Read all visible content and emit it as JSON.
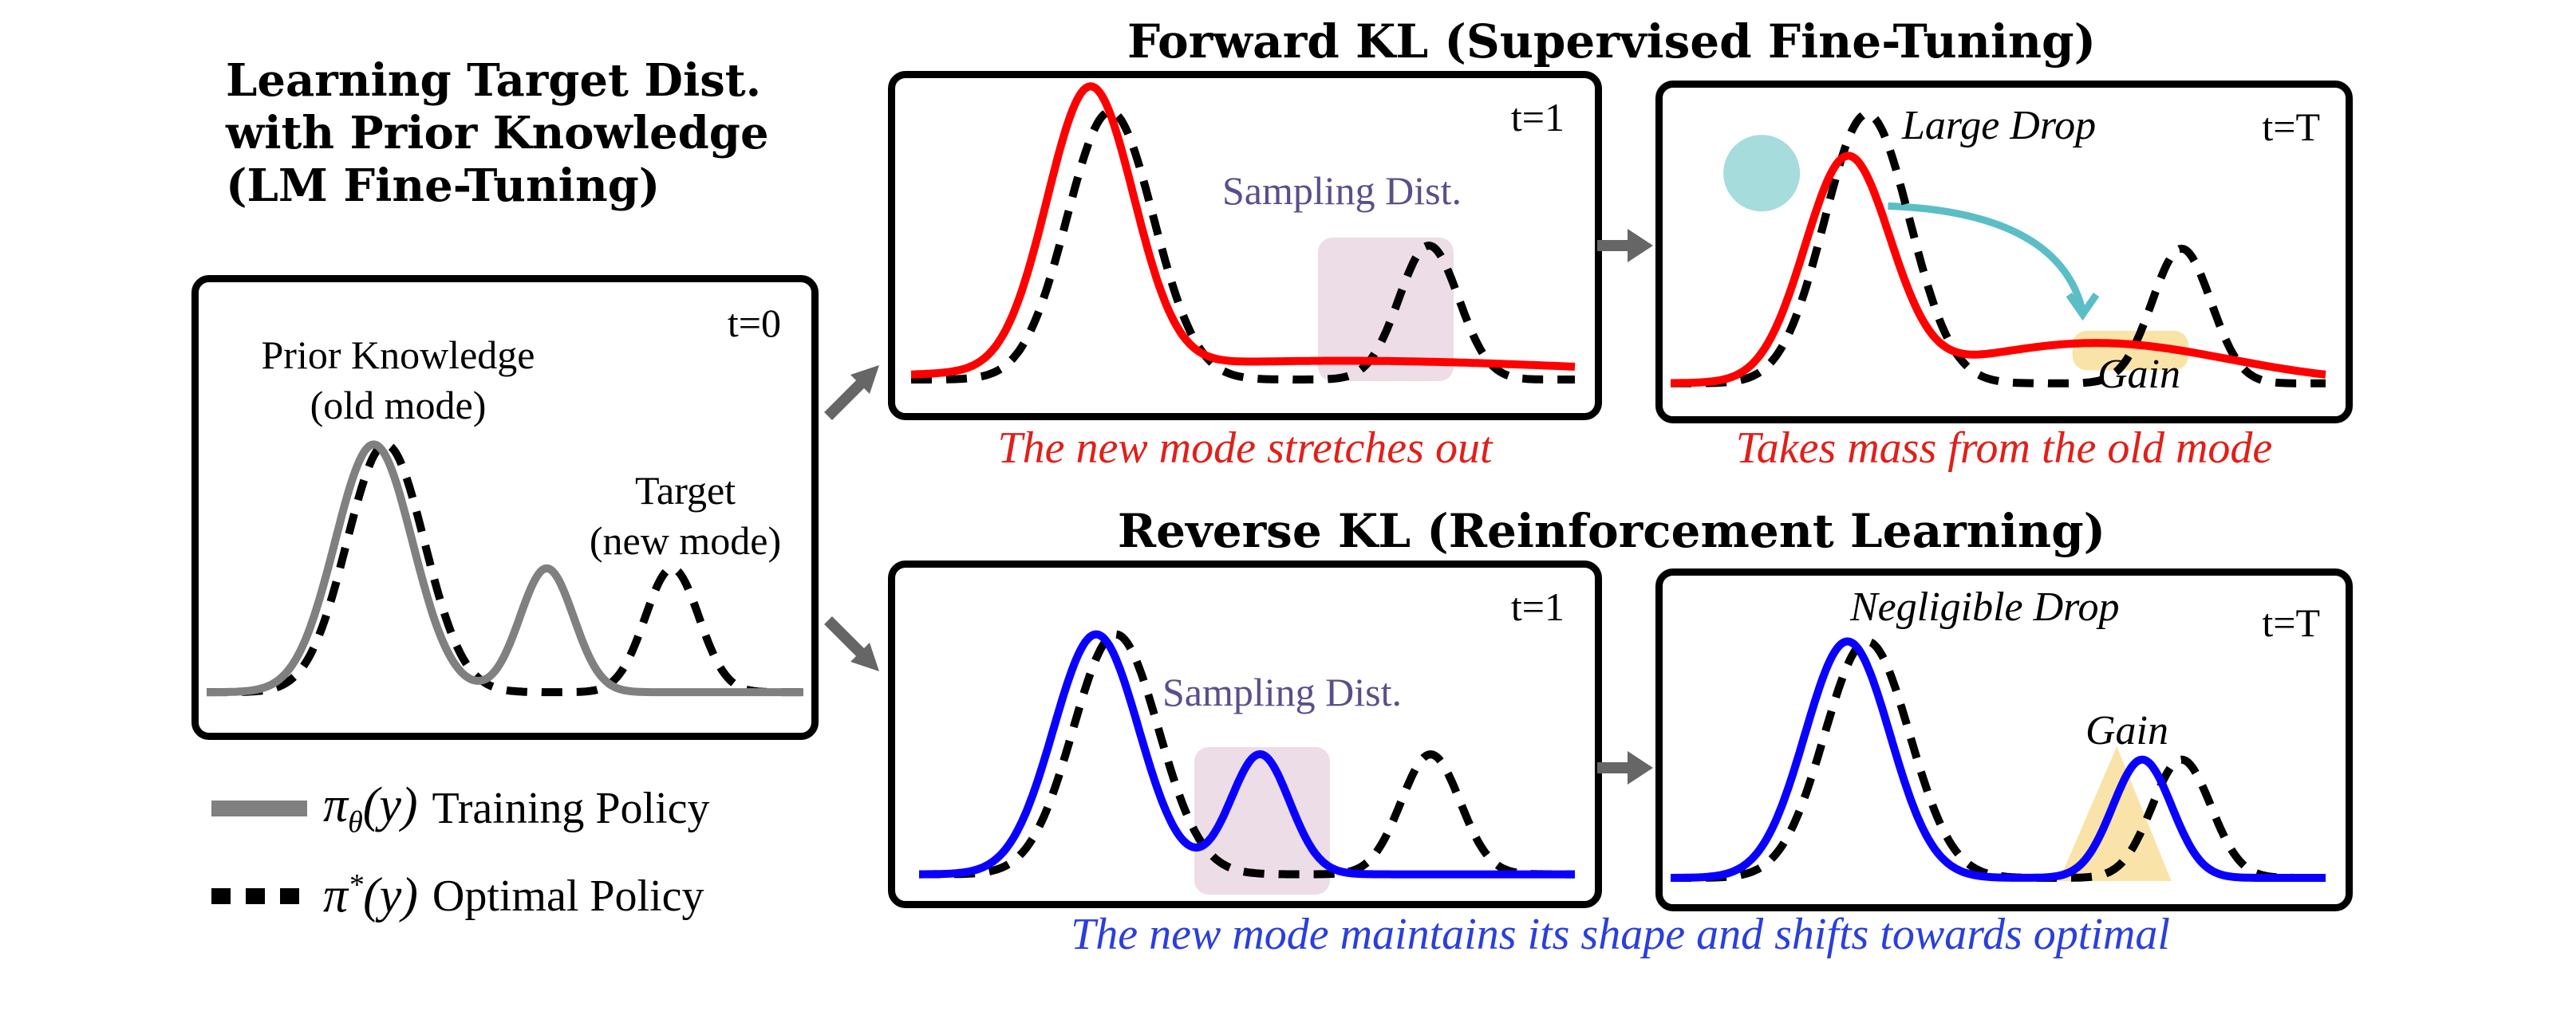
{
  "header": {
    "title_lines": [
      "Learning Target Dist.",
      "with Prior Knowledge",
      "(LM Fine-Tuning)"
    ]
  },
  "colors": {
    "training_policy_gray": "#808080",
    "optimal_policy_black": "#000000",
    "forward_kl_red": "#ff0000",
    "reverse_kl_blue": "#0a00ff",
    "sampling_box": "#ecdde6",
    "sampling_text": "#5c4e8a",
    "gain_fill": "#f9e3a8",
    "drop_circle": "#a6dcdc",
    "drop_arrow": "#5bbec6",
    "flow_arrow": "#666666",
    "forward_caption": "#e0201a",
    "reverse_caption": "#2a3fdc"
  },
  "initial_panel": {
    "time_label": "t=0",
    "prior_label_lines": [
      "Prior Knowledge",
      "(old mode)"
    ],
    "target_label_lines": [
      "Target",
      "(new mode)"
    ]
  },
  "legend": {
    "items": [
      {
        "symbol": "π",
        "subscript": "θ",
        "superscript": "",
        "arg": "(y)",
        "label": "Training Policy",
        "style": "solid-gray"
      },
      {
        "symbol": "π",
        "subscript": "",
        "superscript": "*",
        "arg": "(y)",
        "label": "Optimal Policy",
        "style": "dashed-black"
      }
    ]
  },
  "forward_kl": {
    "title": "Forward KL (Supervised Fine-Tuning)",
    "panel_t1": {
      "time_label": "t=1",
      "sampling_label": "Sampling Dist.",
      "caption": "The new mode stretches out"
    },
    "panel_tT": {
      "time_label": "t=T",
      "drop_label": "Large Drop",
      "gain_label": "Gain",
      "caption": "Takes mass from the old mode"
    }
  },
  "reverse_kl": {
    "title": "Reverse KL (Reinforcement Learning)",
    "panel_t1": {
      "time_label": "t=1",
      "sampling_label": "Sampling Dist."
    },
    "panel_tT": {
      "time_label": "t=T",
      "drop_label": "Negligible Drop",
      "gain_label": "Gain"
    },
    "caption": "The new mode maintains its shape and shifts towards optimal"
  },
  "chart_data": {
    "type": "line",
    "description": "Illustrative density curves (mixtures of Gaussians) over y in [0,1]; heights relative to old-mode peak of optimal policy = 1.0",
    "x_range": [
      0,
      1
    ],
    "optimal_policy": {
      "modes": [
        {
          "mu": 0.3,
          "sigma": 0.065,
          "height": 1.0
        },
        {
          "mu": 0.78,
          "sigma": 0.045,
          "height": 0.5
        }
      ]
    },
    "panels": [
      {
        "id": "t0",
        "training": {
          "modes": [
            {
              "mu": 0.28,
              "sigma": 0.065,
              "height": 1.0
            },
            {
              "mu": 0.57,
              "sigma": 0.045,
              "height": 0.5
            }
          ]
        }
      },
      {
        "id": "fkl_t1",
        "training": {
          "modes": [
            {
              "mu": 0.27,
              "sigma": 0.065,
              "height": 1.05
            },
            {
              "mu": 0.65,
              "sigma": 0.4,
              "height": 0.07
            }
          ]
        }
      },
      {
        "id": "fkl_tT",
        "training": {
          "modes": [
            {
              "mu": 0.27,
              "sigma": 0.065,
              "height": 0.82
            },
            {
              "mu": 0.65,
              "sigma": 0.2,
              "height": 0.15
            }
          ]
        }
      },
      {
        "id": "rkl_t1",
        "training": {
          "modes": [
            {
              "mu": 0.27,
              "sigma": 0.065,
              "height": 1.0
            },
            {
              "mu": 0.52,
              "sigma": 0.045,
              "height": 0.5
            }
          ]
        }
      },
      {
        "id": "rkl_tT",
        "training": {
          "modes": [
            {
              "mu": 0.27,
              "sigma": 0.065,
              "height": 1.0
            },
            {
              "mu": 0.72,
              "sigma": 0.045,
              "height": 0.5
            }
          ]
        }
      }
    ]
  }
}
